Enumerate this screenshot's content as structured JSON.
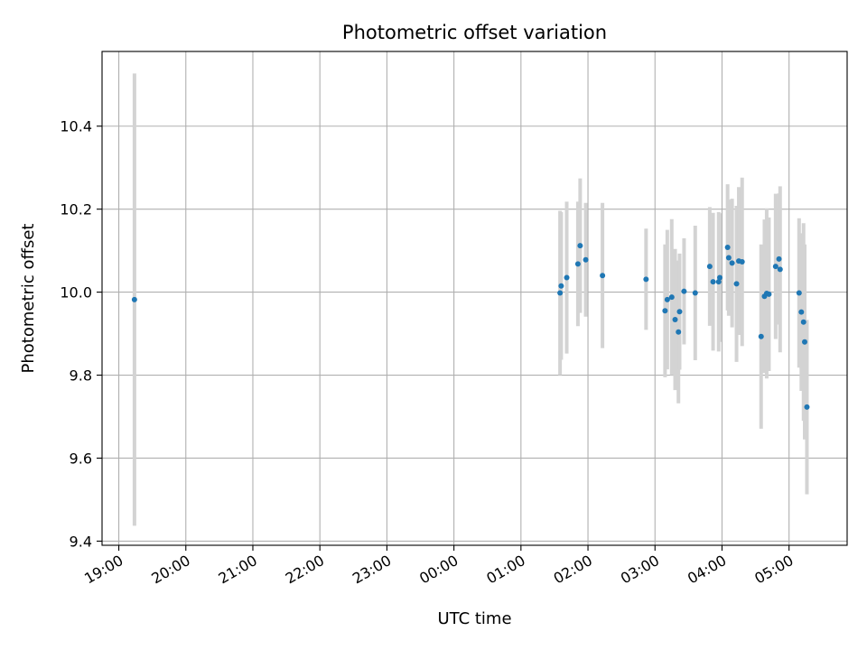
{
  "chart_data": {
    "type": "scatter",
    "title": "Photometric offset variation",
    "xlabel": "UTC time",
    "ylabel": "Photometric offset",
    "x_ticks": [
      "19:00",
      "20:00",
      "21:00",
      "22:00",
      "23:00",
      "00:00",
      "01:00",
      "02:00",
      "03:00",
      "04:00",
      "05:00"
    ],
    "y_ticks": [
      "9.4",
      "9.6",
      "9.8",
      "10.0",
      "10.2",
      "10.4"
    ],
    "ylim": [
      9.39,
      10.58
    ],
    "grid": true,
    "colors": {
      "marker": "#1f77b4",
      "errorbar": "#d3d3d3",
      "grid": "#b0b0b0"
    },
    "points": [
      {
        "t": "19:14",
        "y": 9.982,
        "err": 0.545
      },
      {
        "t": "01:35",
        "y": 9.998,
        "err": 0.198
      },
      {
        "t": "01:36",
        "y": 10.015,
        "err": 0.178
      },
      {
        "t": "01:41",
        "y": 10.035,
        "err": 0.183
      },
      {
        "t": "01:51",
        "y": 10.068,
        "err": 0.15
      },
      {
        "t": "01:53",
        "y": 10.112,
        "err": 0.162
      },
      {
        "t": "01:58",
        "y": 10.078,
        "err": 0.137
      },
      {
        "t": "02:13",
        "y": 10.04,
        "err": 0.175
      },
      {
        "t": "02:52",
        "y": 10.031,
        "err": 0.122
      },
      {
        "t": "03:09",
        "y": 9.955,
        "err": 0.16
      },
      {
        "t": "03:11",
        "y": 9.982,
        "err": 0.168
      },
      {
        "t": "03:15",
        "y": 9.988,
        "err": 0.188
      },
      {
        "t": "03:18",
        "y": 9.934,
        "err": 0.17
      },
      {
        "t": "03:21",
        "y": 9.904,
        "err": 0.172
      },
      {
        "t": "03:22",
        "y": 9.953,
        "err": 0.14
      },
      {
        "t": "03:26",
        "y": 10.002,
        "err": 0.128
      },
      {
        "t": "03:36",
        "y": 9.998,
        "err": 0.162
      },
      {
        "t": "03:49",
        "y": 10.062,
        "err": 0.143
      },
      {
        "t": "03:52",
        "y": 10.025,
        "err": 0.166
      },
      {
        "t": "03:57",
        "y": 10.025,
        "err": 0.168
      },
      {
        "t": "03:58",
        "y": 10.035,
        "err": 0.155
      },
      {
        "t": "04:05",
        "y": 10.108,
        "err": 0.152
      },
      {
        "t": "04:06",
        "y": 10.083,
        "err": 0.14
      },
      {
        "t": "04:09",
        "y": 10.07,
        "err": 0.155
      },
      {
        "t": "04:13",
        "y": 10.02,
        "err": 0.188
      },
      {
        "t": "04:15",
        "y": 10.075,
        "err": 0.178
      },
      {
        "t": "04:18",
        "y": 10.073,
        "err": 0.203
      },
      {
        "t": "04:35",
        "y": 9.893,
        "err": 0.222
      },
      {
        "t": "04:38",
        "y": 9.99,
        "err": 0.185
      },
      {
        "t": "04:40",
        "y": 9.997,
        "err": 0.205
      },
      {
        "t": "04:42",
        "y": 9.995,
        "err": 0.185
      },
      {
        "t": "04:48",
        "y": 10.062,
        "err": 0.175
      },
      {
        "t": "04:51",
        "y": 10.08,
        "err": 0.158
      },
      {
        "t": "04:52",
        "y": 10.055,
        "err": 0.2
      },
      {
        "t": "05:09",
        "y": 9.998,
        "err": 0.18
      },
      {
        "t": "05:11",
        "y": 9.952,
        "err": 0.19
      },
      {
        "t": "05:13",
        "y": 9.928,
        "err": 0.238
      },
      {
        "t": "05:14",
        "y": 9.88,
        "err": 0.235
      },
      {
        "t": "05:16",
        "y": 9.723,
        "err": 0.21
      }
    ]
  }
}
